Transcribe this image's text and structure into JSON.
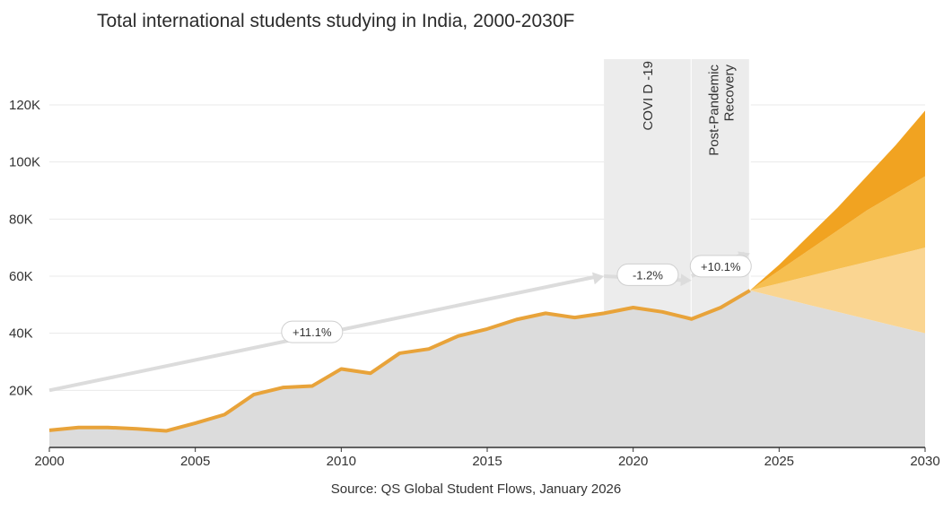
{
  "chart_data": {
    "type": "area",
    "title": "Total international students studying in India, 2000-2030F",
    "source": "Source: QS Global Student Flows, January 2026",
    "x_range": [
      2000,
      2030
    ],
    "y_range": [
      0,
      125000
    ],
    "x_ticks": [
      2000,
      2005,
      2010,
      2015,
      2020,
      2025,
      2030
    ],
    "x_tick_labels": [
      "2000",
      "2005",
      "2010",
      "2015",
      "2020",
      "2025",
      "2030"
    ],
    "y_ticks": [
      20000,
      40000,
      60000,
      80000,
      100000,
      120000
    ],
    "y_tick_labels": [
      "20K",
      "40K",
      "60K",
      "80K",
      "100K",
      "120K"
    ],
    "grid": true,
    "historical": {
      "x": [
        2000,
        2001,
        2002,
        2003,
        2004,
        2005,
        2006,
        2007,
        2008,
        2009,
        2010,
        2011,
        2012,
        2013,
        2014,
        2015,
        2016,
        2017,
        2018,
        2019,
        2020,
        2021,
        2022,
        2023,
        2024
      ],
      "y": [
        6000,
        7000,
        7000,
        6500,
        5800,
        8500,
        11500,
        18500,
        21000,
        21500,
        27500,
        26000,
        33000,
        34500,
        39000,
        41500,
        44800,
        47000,
        45500,
        47000,
        49000,
        47500,
        45000,
        49000,
        55000
      ]
    },
    "forecast": {
      "x": [
        2024,
        2025,
        2026,
        2027,
        2028,
        2029,
        2030
      ],
      "low": [
        55000,
        52500,
        50000,
        47500,
        45000,
        42500,
        40000
      ],
      "mid_low": [
        55000,
        57500,
        60000,
        62500,
        65000,
        67500,
        70000
      ],
      "mid_high": [
        55000,
        62000,
        69000,
        76000,
        83000,
        89000,
        95000
      ],
      "high": [
        55000,
        64000,
        74000,
        84000,
        95000,
        106000,
        118000
      ],
      "band_colors": [
        "#fad591",
        "#f6bf50",
        "#f1a321"
      ]
    },
    "periods": [
      {
        "label": "COVI D -19",
        "x_start": 2019,
        "x_end": 2022
      },
      {
        "label_lines": [
          "Post-Pandemic",
          "Recovery"
        ],
        "x_start": 2022,
        "x_end": 2024
      }
    ],
    "growth_annotations": [
      {
        "label": "+11.1%",
        "from": [
          2000,
          20000
        ],
        "to": [
          2019,
          60000
        ],
        "pill_at": [
          2009,
          40500
        ]
      },
      {
        "label": "-1.2%",
        "from": [
          2019,
          60000
        ],
        "to": [
          2022,
          58500
        ],
        "pill_at": [
          2020.5,
          60500
        ]
      },
      {
        "label": "+10.1%",
        "from": [
          2022,
          60000
        ],
        "to": [
          2024,
          68000
        ],
        "pill_at": [
          2023,
          63500
        ]
      }
    ],
    "colors": {
      "line": "#e8a33a",
      "area": "#dcdcdc",
      "period_shade": "#ececec",
      "arrow": "#dcdcdc",
      "grid": "#e9e9e9",
      "axis": "#333333"
    }
  }
}
